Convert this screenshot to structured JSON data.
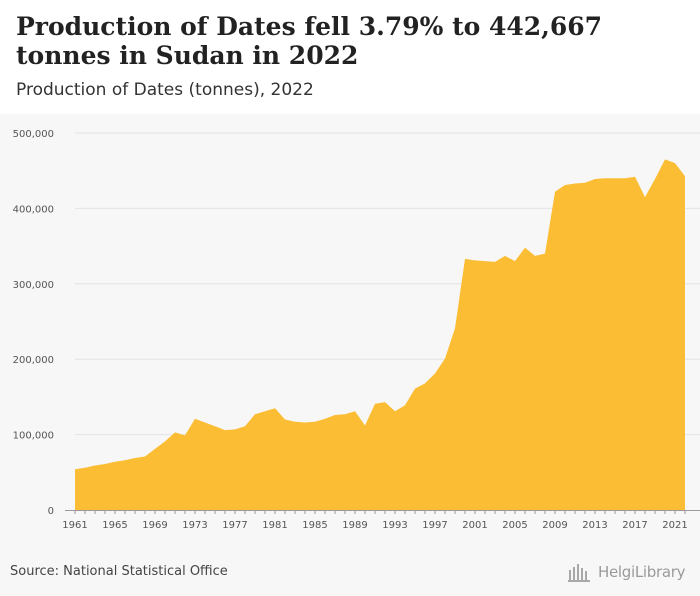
{
  "header": {
    "title": "Production of Dates fell 3.79% to 442,667 tonnes in Sudan in 2022",
    "subtitle": "Production of Dates (tonnes), 2022"
  },
  "footer": {
    "source": "Source: National Statistical Office",
    "logo_text": "HelgiLibrary"
  },
  "colors": {
    "area_fill": "#fbbd33",
    "grid": "#e3e3e3",
    "axis_text": "#555555"
  },
  "chart_data": {
    "type": "area",
    "title": "Production of Dates fell 3.79% to 442,667 tonnes in Sudan in 2022",
    "subtitle": "Production of Dates (tonnes), 2022",
    "xlabel": "",
    "ylabel": "",
    "x_ticks": [
      "1961",
      "1965",
      "1969",
      "1973",
      "1977",
      "1981",
      "1985",
      "1989",
      "1993",
      "1997",
      "2001",
      "2005",
      "2009",
      "2013",
      "2017",
      "2021"
    ],
    "y_ticks": [
      "0",
      "100,000",
      "200,000",
      "300,000",
      "400,000",
      "500,000"
    ],
    "ylim": [
      0,
      500000
    ],
    "xlim": [
      1961,
      2022
    ],
    "grid": "horizontal",
    "series": [
      {
        "x": [
          1961,
          1962,
          1963,
          1964,
          1965,
          1966,
          1967,
          1968,
          1969,
          1970,
          1971,
          1972,
          1973,
          1974,
          1975,
          1976,
          1977,
          1978,
          1979,
          1980,
          1981,
          1982,
          1983,
          1984,
          1985,
          1986,
          1987,
          1988,
          1989,
          1990,
          1991,
          1992,
          1993,
          1994,
          1995,
          1996,
          1997,
          1998,
          1999,
          2000,
          2001,
          2002,
          2003,
          2004,
          2005,
          2006,
          2007,
          2008,
          2009,
          2010,
          2011,
          2012,
          2013,
          2014,
          2015,
          2016,
          2017,
          2018,
          2019,
          2020,
          2021,
          2022
        ],
        "values": [
          54000,
          56000,
          59000,
          61000,
          64000,
          66000,
          69000,
          71000,
          81000,
          91000,
          103000,
          99000,
          121000,
          116000,
          111000,
          106000,
          107000,
          111000,
          127000,
          131000,
          135000,
          120000,
          117000,
          116000,
          117000,
          121000,
          126000,
          127000,
          131000,
          112000,
          141000,
          143000,
          131000,
          139000,
          161000,
          168000,
          181000,
          201000,
          241000,
          333000,
          331000,
          330000,
          329000,
          337000,
          330000,
          348000,
          337000,
          340000,
          422000,
          431000,
          433000,
          434000,
          439000,
          440000,
          440000,
          440000,
          442000,
          415000,
          439000,
          465000,
          460000,
          442667
        ]
      }
    ]
  }
}
